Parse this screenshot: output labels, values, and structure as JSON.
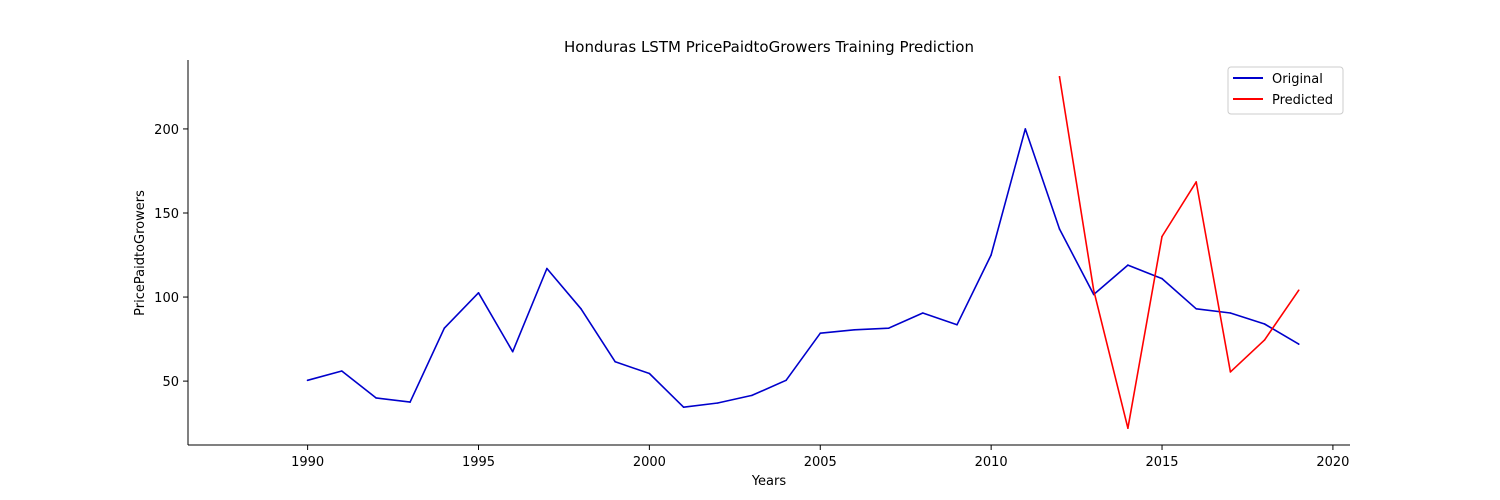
{
  "chart_data": {
    "type": "line",
    "title": "Honduras LSTM PricePaidtoGrowers Training Prediction",
    "xlabel": "Years",
    "ylabel": "PricePaidtoGrowers",
    "xlim": [
      1986.5,
      2020.5
    ],
    "ylim": [
      12,
      241
    ],
    "xticks": [
      1990,
      1995,
      2000,
      2005,
      2010,
      2015,
      2020
    ],
    "yticks": [
      50,
      100,
      150,
      200
    ],
    "grid": false,
    "legend": "top-right",
    "series": [
      {
        "name": "Original",
        "color": "#0000cc",
        "x": [
          1990,
          1991,
          1992,
          1993,
          1994,
          1995,
          1996,
          1997,
          1998,
          1999,
          2000,
          2001,
          2002,
          2003,
          2004,
          2005,
          2006,
          2007,
          2008,
          2009,
          2010,
          2011,
          2012,
          2013,
          2014,
          2015,
          2016,
          2017,
          2018,
          2019
        ],
        "values": [
          50.5,
          56,
          40,
          37.5,
          81.5,
          102.5,
          67.5,
          117,
          93,
          61.5,
          54.5,
          34.5,
          37,
          41.5,
          50.5,
          78.5,
          80.5,
          81.5,
          90.5,
          83.5,
          125,
          200,
          140.5,
          101.5,
          119,
          111,
          93,
          90.5,
          84,
          72
        ]
      },
      {
        "name": "Predicted",
        "color": "#ff0000",
        "x": [
          2012,
          2013,
          2014,
          2015,
          2016,
          2017,
          2018,
          2019
        ],
        "values": [
          231,
          104,
          22,
          136,
          168.5,
          55.5,
          74.5,
          104
        ]
      }
    ]
  }
}
